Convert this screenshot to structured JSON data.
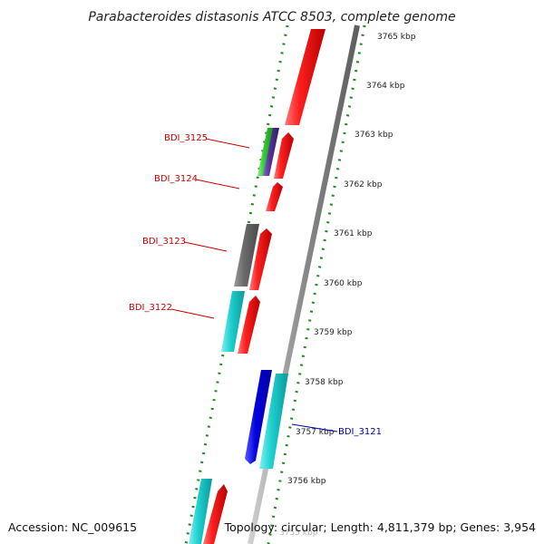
{
  "title": "Parabacteroides distasonis ATCC 8503, complete genome",
  "ticks": [
    "3765 kbp",
    "3764 kbp",
    "3763 kbp",
    "3762 kbp",
    "3761 kbp",
    "3760 kbp",
    "3759 kbp",
    "3758 kbp",
    "3757 kbp",
    "3756 kbp",
    "3755 kbp"
  ],
  "genes": {
    "g3125": "BDI_3125",
    "g3124": "BDI_3124",
    "g3123": "BDI_3123",
    "g3122": "BDI_3122",
    "g3121": "BDI_3121"
  },
  "footer": {
    "accession": "Accession: NC_009615",
    "summary": "Topology: circular; Length: 4,811,379 bp; Genes: 3,954"
  },
  "colors": {
    "forward_strand": "#ee1111",
    "reverse_cyan": "#22cccc",
    "reverse_gray": "#6e6e6e",
    "reverse_green": "#33cc33",
    "reverse_purple": "#553399",
    "reverse_blue": "#0000dd",
    "backbone": "#888888",
    "dotted_ring": "#228822",
    "label_red": "#cc0000",
    "label_blue": "#0000aa"
  }
}
